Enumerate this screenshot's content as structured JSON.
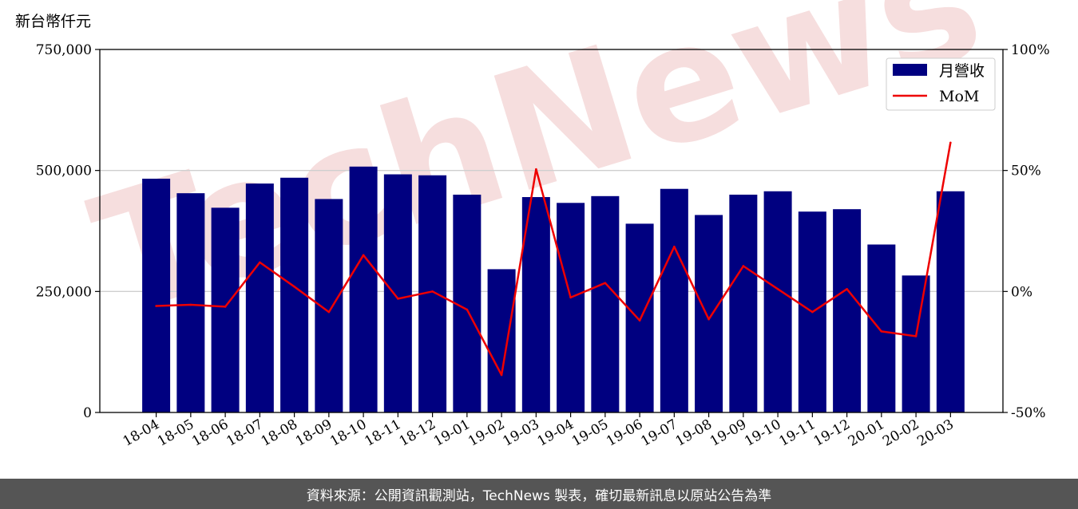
{
  "unit_label": "新台幣仟元",
  "footer_text": "資料來源：公開資訊觀測站，TechNews 製表，確切最新訊息以原站公告為準",
  "watermark_text": "TechNews",
  "colors": {
    "bar": "#000080",
    "line": "#ee0000",
    "grid": "#cfcfcf",
    "watermark": "#f6dede",
    "footer_bg": "#555555"
  },
  "chart_data": {
    "type": "bar",
    "categories": [
      "18-04",
      "18-05",
      "18-06",
      "18-07",
      "18-08",
      "18-09",
      "18-10",
      "18-11",
      "18-12",
      "19-01",
      "19-02",
      "19-03",
      "19-04",
      "19-05",
      "19-06",
      "19-07",
      "19-08",
      "19-09",
      "19-10",
      "19-11",
      "19-12",
      "20-01",
      "20-02",
      "20-03"
    ],
    "series": [
      {
        "name": "月營收",
        "axis": "left",
        "kind": "bar",
        "values": [
          483000,
          453000,
          423000,
          473000,
          485000,
          441000,
          508000,
          492000,
          490000,
          450000,
          296000,
          445000,
          433000,
          447000,
          390000,
          462000,
          408000,
          450000,
          457000,
          415000,
          420000,
          347000,
          283000,
          457000
        ]
      },
      {
        "name": "MoM",
        "axis": "right",
        "kind": "line",
        "values": [
          -6,
          -5.5,
          -6.3,
          12,
          2,
          -8.5,
          15,
          -3,
          0,
          -7.5,
          -34.5,
          50.5,
          -2.5,
          3.5,
          -12,
          18.5,
          -11.5,
          10.5,
          1,
          -8.5,
          1,
          -16.5,
          -18.5,
          61.5
        ]
      }
    ],
    "y_left": {
      "ylim": [
        0,
        750000
      ],
      "ticks": [
        0,
        250000,
        500000,
        750000
      ],
      "tick_labels": [
        "0",
        "250,000",
        "500,000",
        "750,000"
      ]
    },
    "y_right": {
      "ylim": [
        -50,
        100
      ],
      "ticks": [
        -50,
        0,
        50,
        100
      ],
      "tick_labels": [
        "-50%",
        "0%",
        "50%",
        "100%"
      ]
    },
    "grid": "horizontal",
    "legend": "top-right"
  }
}
